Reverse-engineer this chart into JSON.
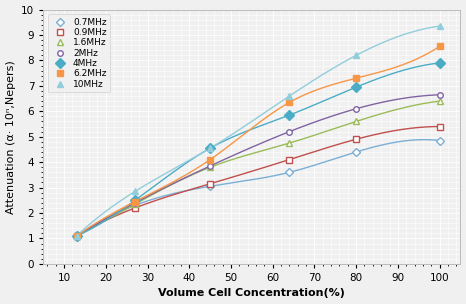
{
  "title": "",
  "xlabel": "Volume Cell Concentration(%)",
  "ylabel": "Attenuation (α· 10ⁿ,Nepers)",
  "xlim": [
    5,
    105
  ],
  "ylim": [
    0,
    10
  ],
  "xticks": [
    10,
    20,
    30,
    40,
    50,
    60,
    70,
    80,
    90,
    100
  ],
  "yticks": [
    0,
    1,
    2,
    3,
    4,
    5,
    6,
    7,
    8,
    9,
    10
  ],
  "series": [
    {
      "label": "0.7MHz",
      "color": "#7BAFD4",
      "marker": "D",
      "markersize": 4,
      "markerfacecolor": "white",
      "x": [
        13,
        27,
        45,
        64,
        80,
        100
      ],
      "y": [
        1.05,
        2.3,
        3.05,
        3.6,
        4.4,
        4.85
      ]
    },
    {
      "label": "0.9MHz",
      "color": "#C0504D",
      "marker": "s",
      "markersize": 4,
      "markerfacecolor": "white",
      "x": [
        13,
        27,
        45,
        64,
        80,
        100
      ],
      "y": [
        1.1,
        2.2,
        3.15,
        4.1,
        4.9,
        5.4
      ]
    },
    {
      "label": "1.6MHz",
      "color": "#9BBB59",
      "marker": "^",
      "markersize": 4,
      "markerfacecolor": "white",
      "x": [
        13,
        27,
        45,
        64,
        80,
        100
      ],
      "y": [
        1.1,
        2.35,
        3.8,
        4.75,
        5.6,
        6.4
      ]
    },
    {
      "label": "2MHz",
      "color": "#8064A2",
      "marker": "o",
      "markersize": 4,
      "markerfacecolor": "white",
      "x": [
        13,
        27,
        45,
        64,
        80,
        100
      ],
      "y": [
        1.1,
        2.4,
        3.85,
        5.2,
        6.1,
        6.65
      ]
    },
    {
      "label": "4MHz",
      "color": "#4BACC6",
      "marker": "D",
      "markersize": 5,
      "markerfacecolor": "#4BACC6",
      "x": [
        13,
        27,
        45,
        64,
        80,
        100
      ],
      "y": [
        1.1,
        2.5,
        4.55,
        5.85,
        6.95,
        7.9
      ]
    },
    {
      "label": "6.2MHz",
      "color": "#F79646",
      "marker": "s",
      "markersize": 5,
      "markerfacecolor": "#F79646",
      "x": [
        13,
        27,
        45,
        64,
        80,
        100
      ],
      "y": [
        1.1,
        2.45,
        4.1,
        6.35,
        7.3,
        8.55
      ]
    },
    {
      "label": "10MHz",
      "color": "#92CDDC",
      "marker": "^",
      "markersize": 5,
      "markerfacecolor": "#92CDDC",
      "x": [
        13,
        27,
        45,
        64,
        80,
        100
      ],
      "y": [
        1.1,
        2.85,
        4.55,
        6.6,
        8.2,
        9.35
      ]
    }
  ],
  "background_color": "#f0f0f0",
  "plot_bg_color": "#f0f0f0",
  "grid_color": "#ffffff",
  "legend_fontsize": 6.5,
  "axis_fontsize": 8,
  "tick_fontsize": 7.5
}
